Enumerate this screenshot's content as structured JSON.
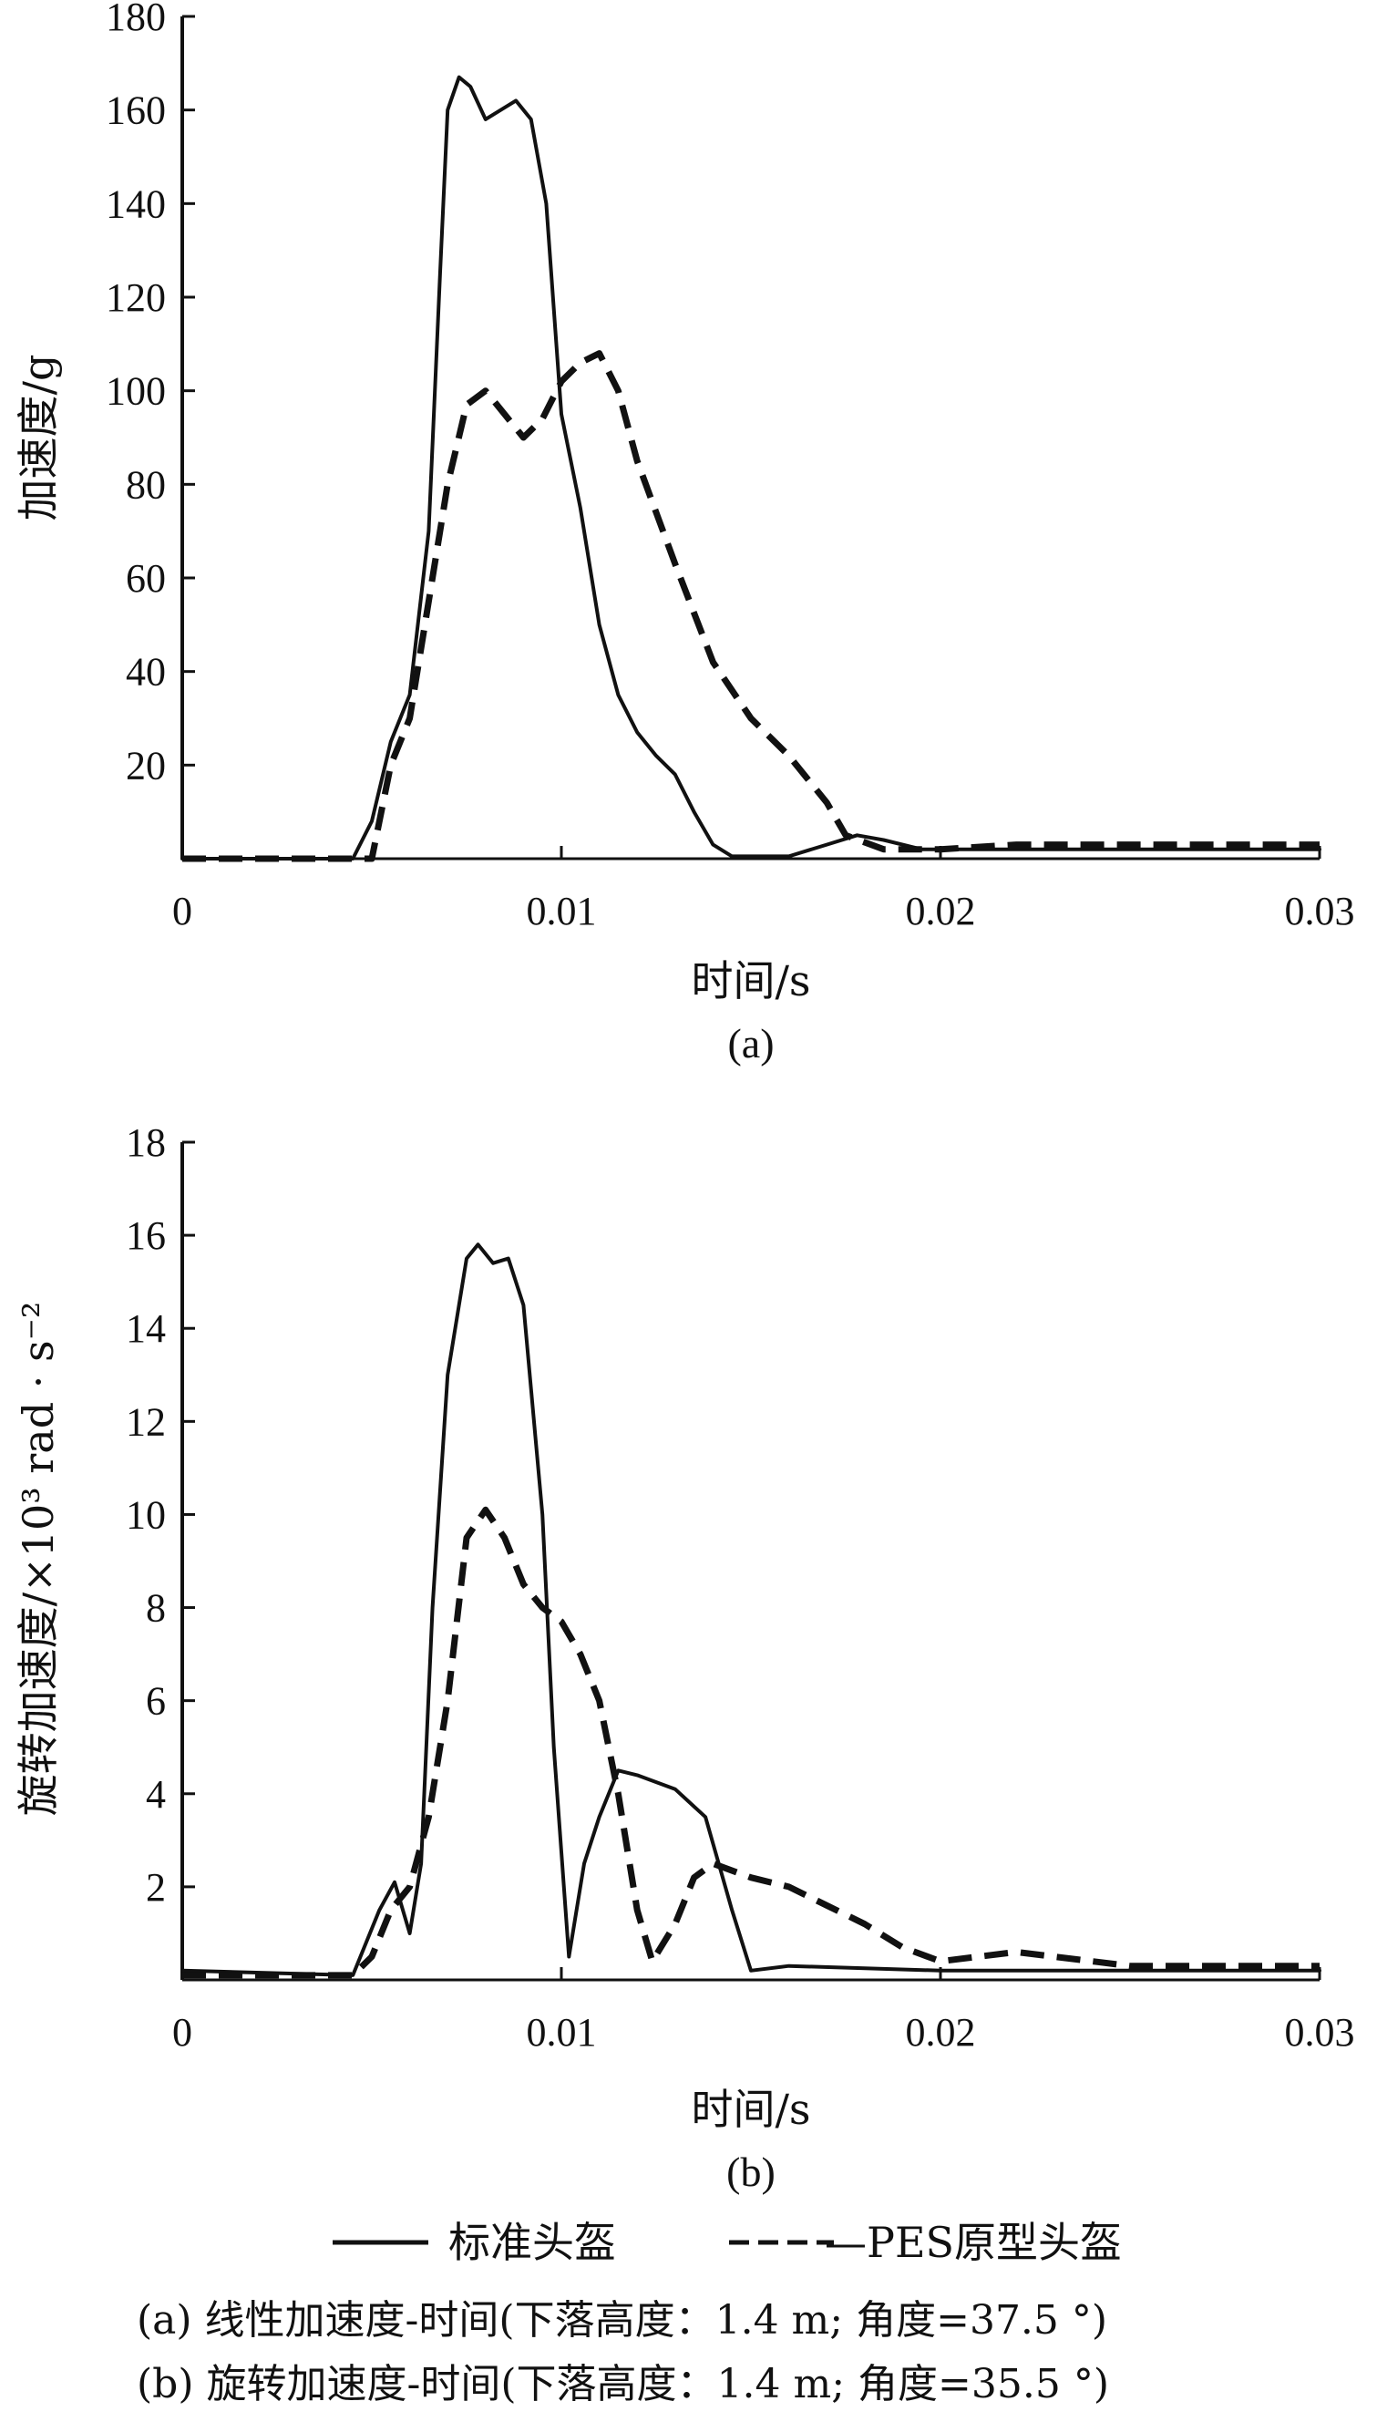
{
  "chart_data": [
    {
      "type": "line",
      "panel_label": "(a)",
      "xlabel": "时间/s",
      "ylabel": "加速度/g",
      "xlim": [
        0,
        0.03
      ],
      "ylim": [
        0,
        180
      ],
      "x_ticks": [
        "0",
        "0.01",
        "0.02",
        "0.03"
      ],
      "y_ticks": [
        "20",
        "40",
        "60",
        "80",
        "100",
        "120",
        "140",
        "160",
        "180"
      ],
      "series": [
        {
          "name": "标准头盔",
          "style": "solid",
          "points": [
            [
              0,
              0
            ],
            [
              0.0045,
              0
            ],
            [
              0.005,
              8
            ],
            [
              0.0055,
              25
            ],
            [
              0.006,
              35
            ],
            [
              0.0065,
              70
            ],
            [
              0.0068,
              125
            ],
            [
              0.007,
              160
            ],
            [
              0.0073,
              167
            ],
            [
              0.0076,
              165
            ],
            [
              0.008,
              158
            ],
            [
              0.0084,
              160
            ],
            [
              0.0088,
              162
            ],
            [
              0.0092,
              158
            ],
            [
              0.0096,
              140
            ],
            [
              0.01,
              95
            ],
            [
              0.0105,
              75
            ],
            [
              0.011,
              50
            ],
            [
              0.0115,
              35
            ],
            [
              0.012,
              27
            ],
            [
              0.0125,
              22
            ],
            [
              0.013,
              18
            ],
            [
              0.0135,
              10
            ],
            [
              0.014,
              3
            ],
            [
              0.0145,
              0.5
            ],
            [
              0.016,
              0.5
            ],
            [
              0.017,
              3
            ],
            [
              0.0178,
              5
            ],
            [
              0.0185,
              4
            ],
            [
              0.0195,
              2
            ],
            [
              0.021,
              2
            ],
            [
              0.03,
              2
            ]
          ]
        },
        {
          "name": "PES原型头盔",
          "style": "dashed",
          "points": [
            [
              0,
              0
            ],
            [
              0.005,
              0
            ],
            [
              0.0055,
              20
            ],
            [
              0.006,
              30
            ],
            [
              0.0065,
              55
            ],
            [
              0.007,
              80
            ],
            [
              0.0075,
              97
            ],
            [
              0.008,
              100
            ],
            [
              0.0085,
              95
            ],
            [
              0.009,
              90
            ],
            [
              0.0095,
              94
            ],
            [
              0.01,
              102
            ],
            [
              0.0105,
              106
            ],
            [
              0.011,
              108
            ],
            [
              0.0115,
              100
            ],
            [
              0.012,
              85
            ],
            [
              0.013,
              63
            ],
            [
              0.014,
              42
            ],
            [
              0.015,
              30
            ],
            [
              0.016,
              22
            ],
            [
              0.017,
              12
            ],
            [
              0.0175,
              5
            ],
            [
              0.0185,
              2
            ],
            [
              0.02,
              2
            ],
            [
              0.022,
              3
            ],
            [
              0.025,
              3
            ],
            [
              0.03,
              3
            ]
          ]
        }
      ]
    },
    {
      "type": "line",
      "panel_label": "(b)",
      "xlabel": "时间/s",
      "ylabel": "旋转加速度/×10³ rad · s⁻²",
      "xlim": [
        0,
        0.03
      ],
      "ylim": [
        0,
        18
      ],
      "x_ticks": [
        "0",
        "0.01",
        "0.02",
        "0.03"
      ],
      "y_ticks": [
        "2",
        "4",
        "6",
        "8",
        "10",
        "12",
        "14",
        "16",
        "18"
      ],
      "series": [
        {
          "name": "标准头盔",
          "style": "solid",
          "points": [
            [
              0,
              0.2
            ],
            [
              0.0045,
              0.1
            ],
            [
              0.0052,
              1.5
            ],
            [
              0.0056,
              2.1
            ],
            [
              0.006,
              1.0
            ],
            [
              0.0063,
              2.5
            ],
            [
              0.0066,
              8
            ],
            [
              0.007,
              13
            ],
            [
              0.0075,
              15.5
            ],
            [
              0.0078,
              15.8
            ],
            [
              0.0082,
              15.4
            ],
            [
              0.0086,
              15.5
            ],
            [
              0.009,
              14.5
            ],
            [
              0.0095,
              10
            ],
            [
              0.0098,
              5
            ],
            [
              0.0102,
              0.5
            ],
            [
              0.0106,
              2.5
            ],
            [
              0.011,
              3.5
            ],
            [
              0.0115,
              4.5
            ],
            [
              0.012,
              4.4
            ],
            [
              0.013,
              4.1
            ],
            [
              0.0138,
              3.5
            ],
            [
              0.0145,
              1.5
            ],
            [
              0.015,
              0.2
            ],
            [
              0.016,
              0.3
            ],
            [
              0.02,
              0.2
            ],
            [
              0.03,
              0.2
            ]
          ]
        },
        {
          "name": "PES原型头盔",
          "style": "dashed",
          "points": [
            [
              0,
              0.1
            ],
            [
              0.0045,
              0.1
            ],
            [
              0.005,
              0.5
            ],
            [
              0.0055,
              1.5
            ],
            [
              0.006,
              2.0
            ],
            [
              0.0065,
              3.5
            ],
            [
              0.007,
              6
            ],
            [
              0.0075,
              9.5
            ],
            [
              0.008,
              10.1
            ],
            [
              0.0085,
              9.5
            ],
            [
              0.009,
              8.5
            ],
            [
              0.0095,
              8.0
            ],
            [
              0.01,
              7.7
            ],
            [
              0.0105,
              7.0
            ],
            [
              0.011,
              6.0
            ],
            [
              0.0115,
              4.0
            ],
            [
              0.012,
              1.5
            ],
            [
              0.0124,
              0.4
            ],
            [
              0.013,
              1.2
            ],
            [
              0.0135,
              2.2
            ],
            [
              0.014,
              2.5
            ],
            [
              0.015,
              2.2
            ],
            [
              0.016,
              2.0
            ],
            [
              0.017,
              1.6
            ],
            [
              0.018,
              1.2
            ],
            [
              0.019,
              0.7
            ],
            [
              0.02,
              0.4
            ],
            [
              0.022,
              0.6
            ],
            [
              0.025,
              0.3
            ],
            [
              0.03,
              0.3
            ]
          ]
        }
      ]
    }
  ],
  "legend": {
    "entries": [
      "标准头盔",
      "—PES原型头盔"
    ]
  },
  "captions": [
    "(a) 线性加速度-时间(下落高度：1.4 m; 角度=37.5 °)",
    "(b) 旋转加速度-时间(下落高度：1.4 m; 角度=35.5 °)"
  ]
}
